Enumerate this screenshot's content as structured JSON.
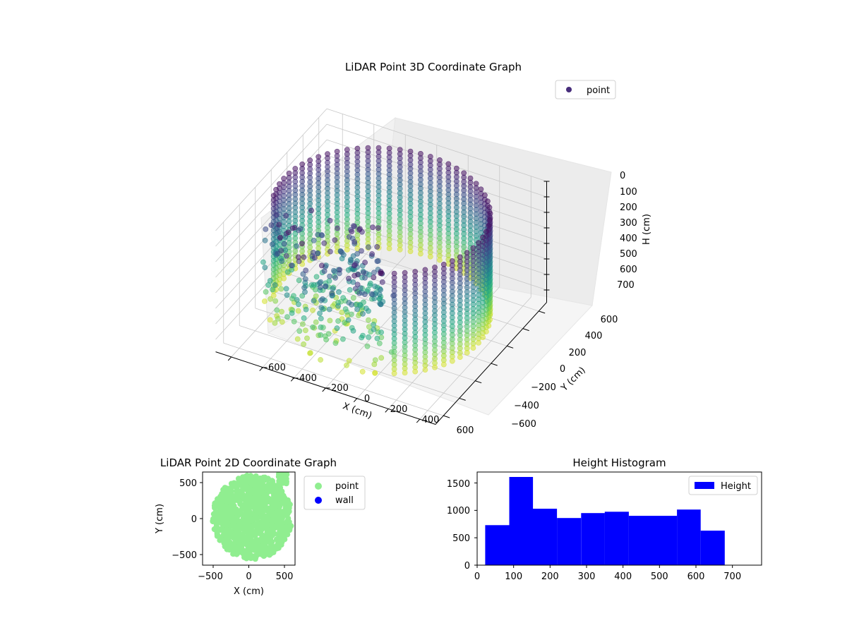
{
  "figure": {
    "main_title": "LiDAR Point 3D Coordinate Graph",
    "colors": {
      "viridis_start": "#440154",
      "viridis_mid": "#21918c",
      "viridis_end": "#fde725",
      "point_2d": "#90ee90",
      "wall_2d": "#0000ff",
      "hist_bar": "#0000ff"
    }
  },
  "chart_data": [
    {
      "type": "scatter",
      "projection": "3d",
      "title": "LiDAR Point 3D Coordinate Graph",
      "xlabel": "X (cm)",
      "ylabel": "Y (cm)",
      "zlabel": "H (cm)",
      "xlim": [
        -700,
        700
      ],
      "ylim": [
        -700,
        700
      ],
      "zlim": [
        780,
        0
      ],
      "x_ticks": [
        "−600",
        "−400",
        "−200",
        "0",
        "200",
        "400",
        "600"
      ],
      "y_ticks": [
        "−600",
        "−400",
        "−200",
        "0",
        "200",
        "400",
        "600"
      ],
      "z_ticks": [
        "0",
        "100",
        "200",
        "300",
        "400",
        "500",
        "600",
        "700"
      ],
      "colormap": "viridis",
      "legend": {
        "entries": [
          "point"
        ],
        "location": "upper-right"
      },
      "grid": true,
      "series": [
        {
          "name": "point",
          "description_rings": {
            "radius_cm": 620,
            "height_range_cm": [
              30,
              700
            ]
          }
        }
      ]
    },
    {
      "type": "scatter",
      "title": "LiDAR Point 2D Coordinate Graph",
      "xlabel": "X (cm)",
      "ylabel": "Y (cm)",
      "xlim": [
        -650,
        650
      ],
      "ylim": [
        -650,
        650
      ],
      "x_ticks": [
        "−500",
        "0",
        "500"
      ],
      "y_ticks": [
        "500",
        "0",
        "−500"
      ],
      "legend": {
        "entries": [
          "point",
          "wall"
        ],
        "location": "outside-right"
      },
      "series": [
        {
          "name": "point",
          "color": "#90ee90",
          "radius_cm": 560
        },
        {
          "name": "wall",
          "color": "#0000ff"
        }
      ]
    },
    {
      "type": "bar",
      "subtype": "histogram",
      "title": "Height Histogram",
      "xlim": [
        0,
        780
      ],
      "ylim": [
        0,
        1700
      ],
      "x_ticks": [
        "0",
        "100",
        "200",
        "300",
        "400",
        "500",
        "600",
        "700"
      ],
      "y_ticks": [
        "0",
        "500",
        "1000",
        "1500"
      ],
      "legend": {
        "entries": [
          "Height"
        ],
        "location": "upper-right"
      },
      "bins": [
        {
          "start": 22,
          "end": 88,
          "count": 730
        },
        {
          "start": 88,
          "end": 153,
          "count": 1610
        },
        {
          "start": 153,
          "end": 219,
          "count": 1030
        },
        {
          "start": 219,
          "end": 285,
          "count": 860
        },
        {
          "start": 285,
          "end": 350,
          "count": 950
        },
        {
          "start": 350,
          "end": 416,
          "count": 975
        },
        {
          "start": 416,
          "end": 482,
          "count": 900
        },
        {
          "start": 482,
          "end": 548,
          "count": 900
        },
        {
          "start": 548,
          "end": 613,
          "count": 1015
        },
        {
          "start": 613,
          "end": 679,
          "count": 630
        }
      ]
    }
  ]
}
